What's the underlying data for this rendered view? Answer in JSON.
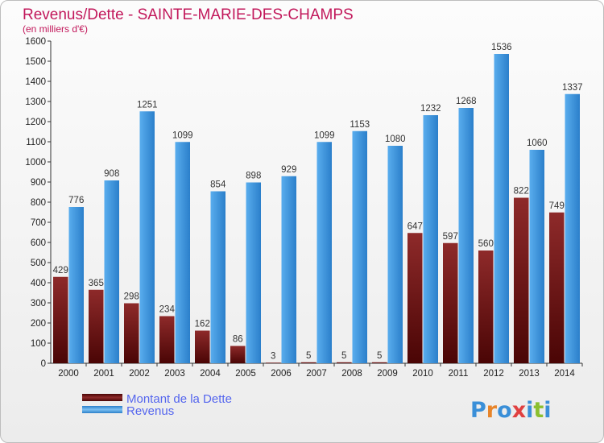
{
  "chart_data": {
    "type": "bar",
    "title": "Revenus/Dette - SAINTE-MARIE-DES-CHAMPS",
    "subtitle": "(en milliers d'€)",
    "categories": [
      "2000",
      "2001",
      "2002",
      "2003",
      "2004",
      "2005",
      "2006",
      "2007",
      "2008",
      "2009",
      "2010",
      "2011",
      "2012",
      "2013",
      "2014"
    ],
    "series": [
      {
        "name": "Montant de la Dette",
        "color": "#7b1a1a",
        "values": [
          429,
          365,
          298,
          234,
          162,
          86,
          3,
          5,
          5,
          5,
          647,
          597,
          560,
          822,
          749
        ]
      },
      {
        "name": "Revenus",
        "color": "#3a93db",
        "values": [
          776,
          908,
          1251,
          1099,
          854,
          898,
          929,
          1099,
          1153,
          1080,
          1232,
          1268,
          1536,
          1060,
          1337
        ]
      }
    ],
    "ylim": [
      0,
      1600
    ],
    "ytick_step": 100,
    "grid": false,
    "legend_position": "bottom-left"
  },
  "logo": {
    "text": "Proxiti",
    "letter_colors": [
      "#3a8fd8",
      "#e8852a",
      "#3a8fd8",
      "#e04040",
      "#3a8fd8",
      "#8bbf2f",
      "#3a8fd8"
    ]
  }
}
